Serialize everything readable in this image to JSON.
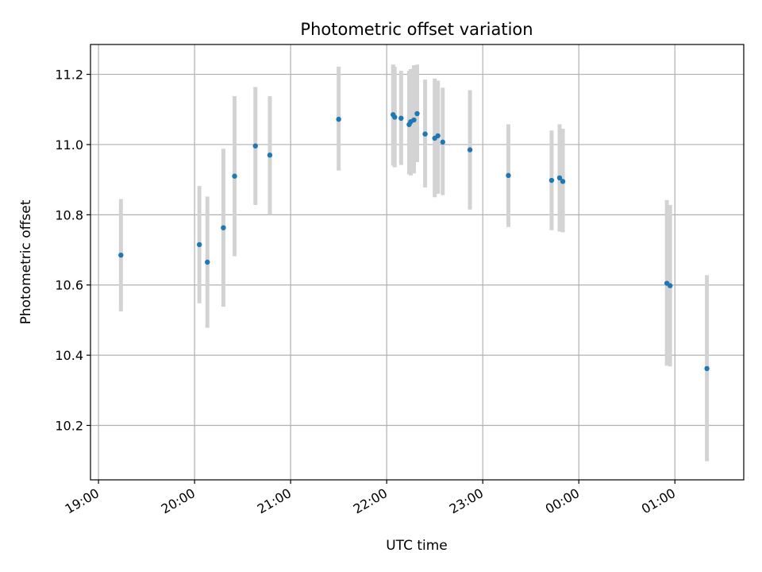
{
  "chart_data": {
    "type": "scatter",
    "title": "Photometric offset variation",
    "xlabel": "UTC time",
    "ylabel": "Photometric offset",
    "x_axis": "time",
    "xlim": [
      "18:55",
      "01:43"
    ],
    "ylim": [
      10.045,
      11.285
    ],
    "x_ticks": [
      "19:00",
      "20:00",
      "21:00",
      "22:00",
      "23:00",
      "00:00",
      "01:00"
    ],
    "y_ticks": [
      10.2,
      10.4,
      10.6,
      10.8,
      11.0,
      11.2
    ],
    "grid": true,
    "point_color": "#1f77b4",
    "errorbar_color": "#d3d3d3",
    "points": [
      {
        "t": "19:14",
        "y": 10.685,
        "lo": 10.525,
        "hi": 10.845
      },
      {
        "t": "20:03",
        "y": 10.715,
        "lo": 10.548,
        "hi": 10.882
      },
      {
        "t": "20:08",
        "y": 10.665,
        "lo": 10.478,
        "hi": 10.852
      },
      {
        "t": "20:18",
        "y": 10.763,
        "lo": 10.538,
        "hi": 10.988
      },
      {
        "t": "20:25",
        "y": 10.91,
        "lo": 10.682,
        "hi": 11.138
      },
      {
        "t": "20:38",
        "y": 10.996,
        "lo": 10.828,
        "hi": 11.164
      },
      {
        "t": "20:47",
        "y": 10.97,
        "lo": 10.8,
        "hi": 11.138
      },
      {
        "t": "21:30",
        "y": 11.072,
        "lo": 10.926,
        "hi": 11.222
      },
      {
        "t": "22:04",
        "y": 11.085,
        "lo": 10.94,
        "hi": 11.228
      },
      {
        "t": "22:05",
        "y": 11.078,
        "lo": 10.935,
        "hi": 11.222
      },
      {
        "t": "22:09",
        "y": 11.075,
        "lo": 10.942,
        "hi": 11.21
      },
      {
        "t": "22:14",
        "y": 11.057,
        "lo": 10.915,
        "hi": 11.21
      },
      {
        "t": "22:15",
        "y": 11.065,
        "lo": 10.912,
        "hi": 11.215
      },
      {
        "t": "22:17",
        "y": 11.07,
        "lo": 10.918,
        "hi": 11.226
      },
      {
        "t": "22:19",
        "y": 11.088,
        "lo": 10.95,
        "hi": 11.228
      },
      {
        "t": "22:24",
        "y": 11.03,
        "lo": 10.878,
        "hi": 11.185
      },
      {
        "t": "22:30",
        "y": 11.018,
        "lo": 10.85,
        "hi": 11.188
      },
      {
        "t": "22:32",
        "y": 11.025,
        "lo": 10.86,
        "hi": 11.182
      },
      {
        "t": "22:35",
        "y": 11.007,
        "lo": 10.856,
        "hi": 11.162
      },
      {
        "t": "22:52",
        "y": 10.985,
        "lo": 10.815,
        "hi": 11.155
      },
      {
        "t": "23:16",
        "y": 10.912,
        "lo": 10.765,
        "hi": 11.058
      },
      {
        "t": "23:43",
        "y": 10.898,
        "lo": 10.756,
        "hi": 11.04
      },
      {
        "t": "23:48",
        "y": 10.905,
        "lo": 10.752,
        "hi": 11.058
      },
      {
        "t": "23:50",
        "y": 10.895,
        "lo": 10.75,
        "hi": 11.045
      },
      {
        "t": "00:55",
        "y": 10.605,
        "lo": 10.37,
        "hi": 10.842
      },
      {
        "t": "00:57",
        "y": 10.598,
        "lo": 10.368,
        "hi": 10.828
      },
      {
        "t": "01:20",
        "y": 10.362,
        "lo": 10.098,
        "hi": 10.628
      }
    ]
  }
}
